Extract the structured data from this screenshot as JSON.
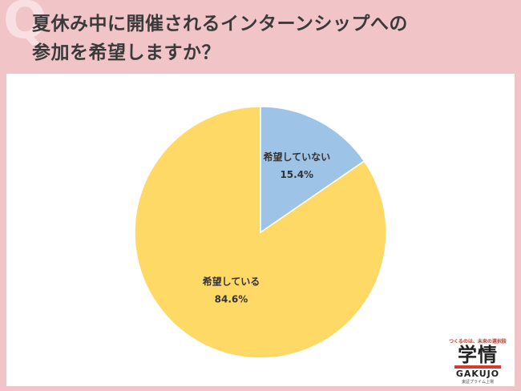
{
  "header": {
    "title_line1": "夏休み中に開催されるインターンシップへの",
    "title_line2": "参加を希望しますか？",
    "q_mark": "Q"
  },
  "logo": {
    "tagline": "つくるのは、未来の選択肢",
    "kanji": "学情",
    "roman": "GAKUJO",
    "sub": "東証プライム上場"
  },
  "chart_data": {
    "type": "pie",
    "slices": [
      {
        "label": "希望している",
        "value": 84.6,
        "display": "84.6%",
        "color": "#ffd966"
      },
      {
        "label": "希望していない",
        "value": 15.4,
        "display": "15.4%",
        "color": "#9dc3e6"
      }
    ],
    "start_angle_deg": 0,
    "direction": "counterclockwise",
    "legend": "none"
  }
}
